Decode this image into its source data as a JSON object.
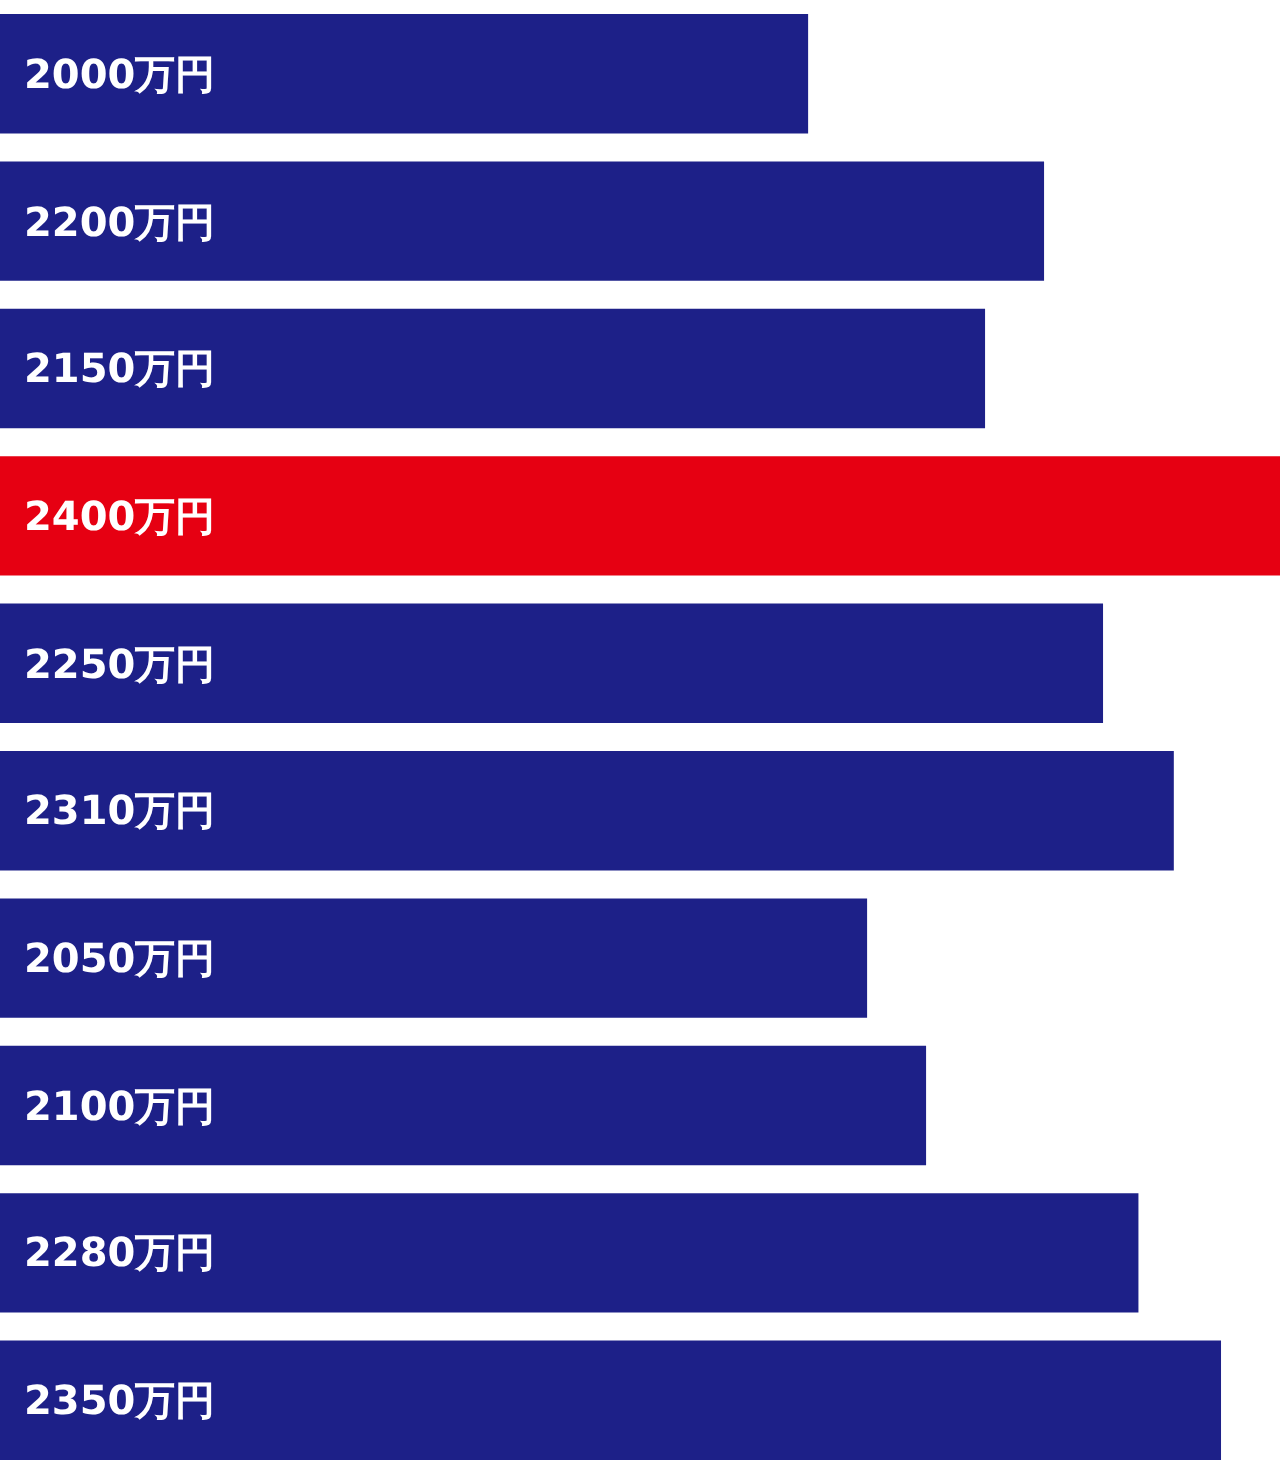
{
  "chart_data": {
    "type": "bar",
    "orientation": "horizontal",
    "categories": [
      null,
      null,
      null,
      null,
      null,
      null,
      null,
      null,
      null,
      null
    ],
    "values": [
      2000,
      2200,
      2150,
      2400,
      2250,
      2310,
      2050,
      2100,
      2280,
      2350
    ],
    "colors": [
      "#1d2088",
      "#1d2088",
      "#1d2088",
      "#e60012",
      "#1d2088",
      "#1d2088",
      "#1d2088",
      "#1d2088",
      "#1d2088",
      "#1d2088"
    ],
    "value_labels": [
      "2000万円",
      "2200万円",
      "2150万円",
      "2400万円",
      "2250万円",
      "2310万円",
      "2050万円",
      "2100万円",
      "2280万円",
      "2350万円"
    ],
    "xlim": [
      1315,
      2400
    ]
  }
}
